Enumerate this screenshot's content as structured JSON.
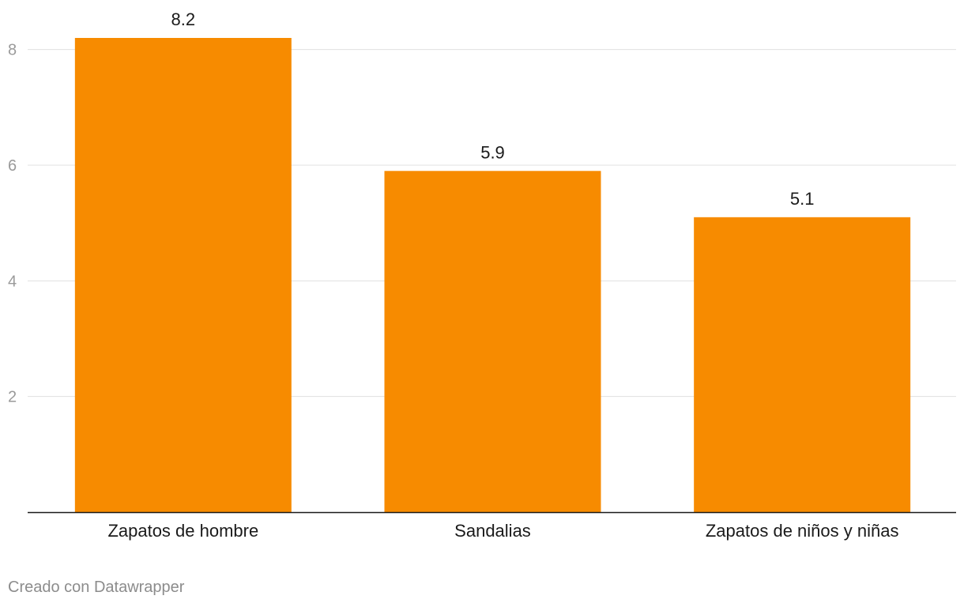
{
  "chart_data": {
    "type": "bar",
    "categories": [
      "Zapatos de hombre",
      "Sandalias",
      "Zapatos de niños y niñas"
    ],
    "values": [
      8.2,
      5.9,
      5.1
    ],
    "value_labels": [
      "8.2",
      "5.9",
      "5.1"
    ],
    "yticks": [
      2,
      4,
      6,
      8
    ],
    "ytick_labels": [
      "2",
      "4",
      "6",
      "8"
    ],
    "ylim": [
      0,
      8.2
    ],
    "grid": true,
    "bar_color": "#f78b00",
    "title": "",
    "xlabel": "",
    "ylabel": ""
  },
  "footer": {
    "credit": "Creado con Datawrapper"
  }
}
